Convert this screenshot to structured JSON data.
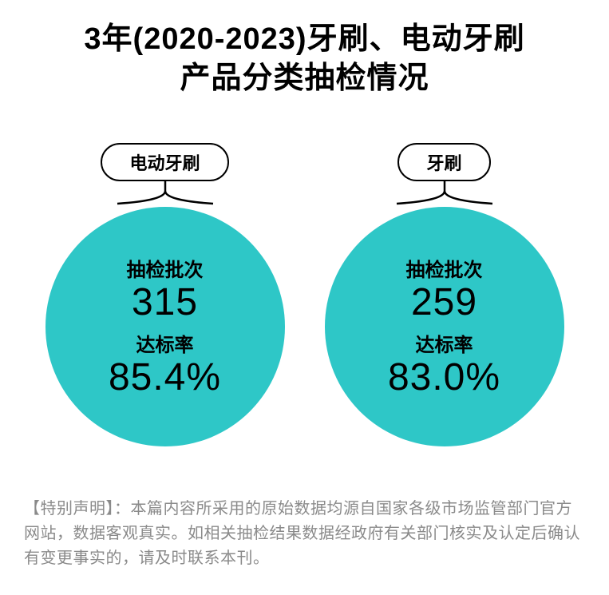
{
  "title_line1": "3年(2020-2023)牙刷、电动牙刷",
  "title_line2": "产品分类抽检情况",
  "title_fontsize": 38,
  "title_color": "#000000",
  "circles": [
    {
      "pill_label": "电动牙刷",
      "batch_label": "抽检批次",
      "batch_value": "315",
      "rate_label": "达标率",
      "rate_value": "85.4%"
    },
    {
      "pill_label": "牙刷",
      "batch_label": "抽检批次",
      "batch_value": "259",
      "rate_label": "达标率",
      "rate_value": "83.0%"
    }
  ],
  "style": {
    "pill_fontsize": 22,
    "pill_border_color": "#000000",
    "circle_diameter": 300,
    "circle_fill": "#2ec7c7",
    "label_small_fontsize": 24,
    "value_big_batch_fontsize": 48,
    "value_big_rate_fontsize": 48,
    "text_color": "#000000",
    "connector_height": 40,
    "connector_curve_width": 140
  },
  "disclaimer": {
    "text": "【特别声明】：本篇内容所采用的原始数据均源自国家各级市场监管部门官方网站，数据客观真实。如相关抽检结果数据经政府有关部门核实及认定后确认有变更事实的，请及时联系本刊。",
    "color": "#8a8a8a",
    "fontsize": 20
  },
  "background_color": "#ffffff"
}
